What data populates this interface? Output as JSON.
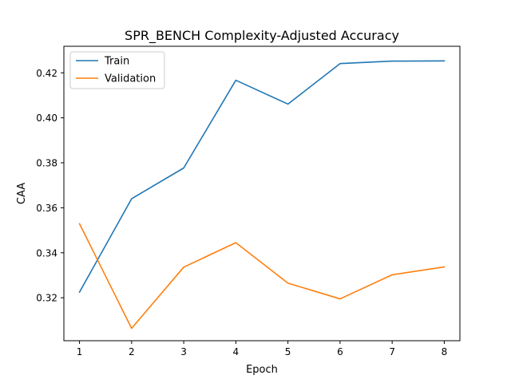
{
  "chart_data": {
    "type": "line",
    "title": "SPR_BENCH Complexity-Adjusted Accuracy",
    "xlabel": "Epoch",
    "ylabel": "CAA",
    "x": [
      1,
      2,
      3,
      4,
      5,
      6,
      7,
      8
    ],
    "xlim": [
      0.7,
      8.3
    ],
    "ylim": [
      0.3009,
      0.4318
    ],
    "xticks": [
      1,
      2,
      3,
      4,
      5,
      6,
      7,
      8
    ],
    "yticks": [
      0.32,
      0.34,
      0.36,
      0.38,
      0.4,
      0.42
    ],
    "ytick_labels": [
      "0.32",
      "0.34",
      "0.36",
      "0.38",
      "0.40",
      "0.42"
    ],
    "grid": false,
    "legend": "top-left",
    "series": [
      {
        "name": "Train",
        "color": "#1f77b4",
        "values": [
          0.3225,
          0.364,
          0.3777,
          0.4167,
          0.4061,
          0.4241,
          0.4252,
          0.4253
        ]
      },
      {
        "name": "Validation",
        "color": "#ff7f0e",
        "values": [
          0.3529,
          0.3064,
          0.3336,
          0.3445,
          0.3265,
          0.3195,
          0.3302,
          0.3337
        ]
      }
    ]
  }
}
